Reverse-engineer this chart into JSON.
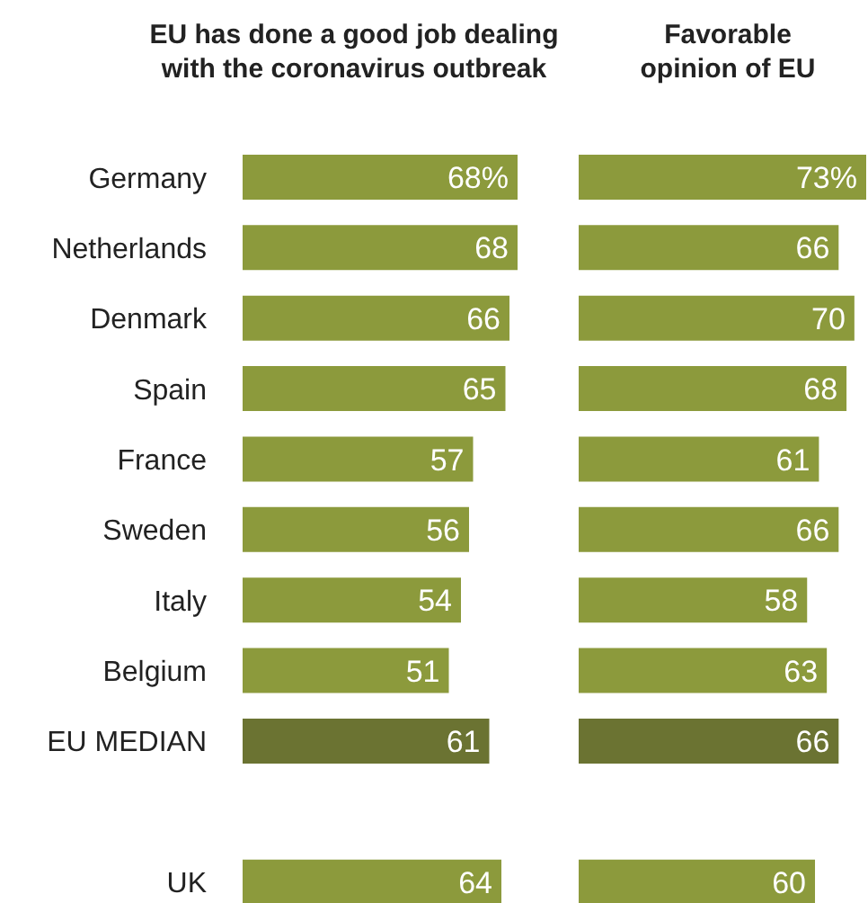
{
  "chart_data": [
    {
      "type": "bar",
      "orientation": "horizontal",
      "title": "EU has done a good job dealing with the coronavirus outbreak",
      "tick_labels": "y",
      "categories": [
        "Germany",
        "Netherlands",
        "Denmark",
        "Spain",
        "France",
        "Sweden",
        "Italy",
        "Belgium",
        "EU MEDIAN",
        null,
        "UK"
      ],
      "values": [
        68,
        68,
        66,
        65,
        57,
        56,
        54,
        51,
        61,
        null,
        64
      ],
      "value_labels": [
        "68%",
        "68",
        "66",
        "65",
        "57",
        "56",
        "54",
        "51",
        "61",
        null,
        "64"
      ],
      "colors": [
        "#8c9a3c",
        "#8c9a3c",
        "#8c9a3c",
        "#8c9a3c",
        "#8c9a3c",
        "#8c9a3c",
        "#8c9a3c",
        "#8c9a3c",
        "#6b7332",
        null,
        "#8c9a3c"
      ]
    },
    {
      "type": "bar",
      "orientation": "horizontal",
      "title": "Favorable opinion of EU",
      "tick_labels": false,
      "values": [
        73,
        66,
        70,
        68,
        61,
        66,
        58,
        63,
        66,
        null,
        60
      ],
      "value_labels": [
        "73%",
        "66",
        "70",
        "68",
        "61",
        "66",
        "58",
        "63",
        "66",
        null,
        "60"
      ],
      "colors": [
        "#8c9a3c",
        "#8c9a3c",
        "#8c9a3c",
        "#8c9a3c",
        "#8c9a3c",
        "#8c9a3c",
        "#8c9a3c",
        "#8c9a3c",
        "#6b7332",
        null,
        "#8c9a3c"
      ]
    }
  ]
}
